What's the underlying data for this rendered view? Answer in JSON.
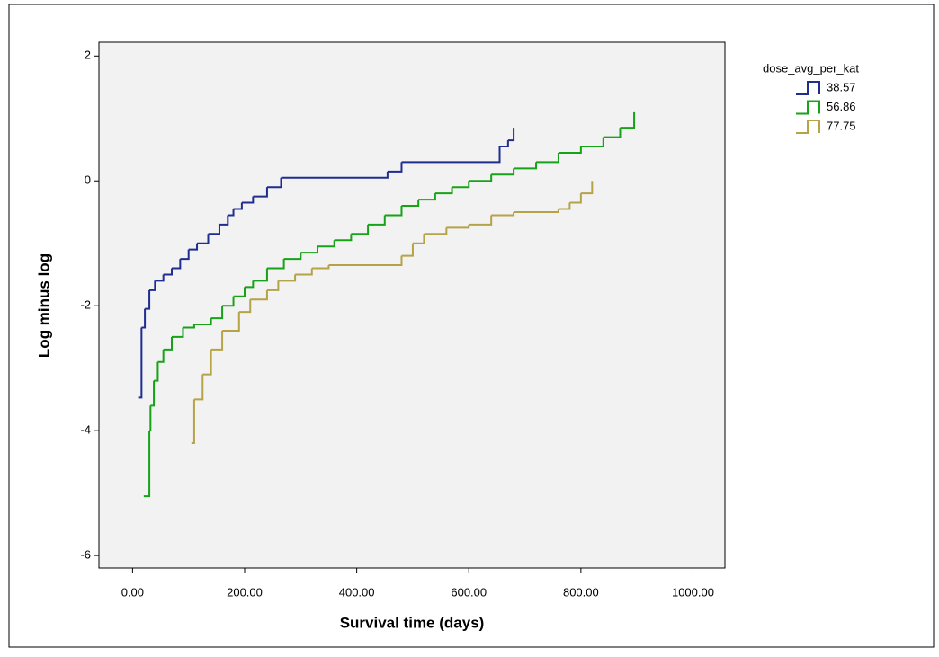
{
  "chart_data": {
    "type": "step",
    "x_label": "Survival time (days)",
    "y_label": "Log minus log",
    "legend_title": "dose_avg_per_kat",
    "legend": "right",
    "xlim": [
      -60,
      1057
    ],
    "ylim": [
      -6.2,
      2.22
    ],
    "xticks": [
      {
        "value": 0,
        "label": "0.00"
      },
      {
        "value": 200,
        "label": "200.00"
      },
      {
        "value": 400,
        "label": "400.00"
      },
      {
        "value": 600,
        "label": "600.00"
      },
      {
        "value": 800,
        "label": "800.00"
      },
      {
        "value": 1000,
        "label": "1000.00"
      }
    ],
    "yticks": [
      2,
      0,
      -2,
      -4,
      -6
    ],
    "series": [
      {
        "name": "38.57",
        "color": "#1f2d91",
        "x": [
          10,
          16,
          22,
          30,
          40,
          55,
          70,
          85,
          100,
          115,
          135,
          155,
          170,
          180,
          195,
          215,
          240,
          265,
          455,
          480,
          655,
          670,
          680
        ],
        "values": [
          -3.47,
          -2.35,
          -2.05,
          -1.75,
          -1.6,
          -1.5,
          -1.4,
          -1.25,
          -1.1,
          -1.0,
          -0.85,
          -0.7,
          -0.55,
          -0.45,
          -0.35,
          -0.25,
          -0.1,
          0.05,
          0.15,
          0.3,
          0.55,
          0.65,
          0.85
        ]
      },
      {
        "name": "56.86",
        "color": "#17a317",
        "x": [
          20,
          30,
          32,
          38,
          45,
          55,
          70,
          90,
          110,
          140,
          160,
          180,
          200,
          215,
          240,
          270,
          300,
          330,
          360,
          390,
          420,
          450,
          480,
          510,
          540,
          570,
          600,
          640,
          680,
          720,
          760,
          800,
          840,
          870,
          895
        ],
        "values": [
          -5.05,
          -4.0,
          -3.6,
          -3.2,
          -2.9,
          -2.7,
          -2.5,
          -2.35,
          -2.3,
          -2.2,
          -2.0,
          -1.85,
          -1.7,
          -1.6,
          -1.4,
          -1.25,
          -1.15,
          -1.05,
          -0.95,
          -0.85,
          -0.7,
          -0.55,
          -0.4,
          -0.3,
          -0.2,
          -0.1,
          0.0,
          0.1,
          0.2,
          0.3,
          0.45,
          0.55,
          0.7,
          0.85,
          1.1
        ]
      },
      {
        "name": "77.75",
        "color": "#b5a348",
        "x": [
          105,
          110,
          125,
          140,
          160,
          190,
          210,
          240,
          260,
          290,
          320,
          350,
          480,
          500,
          520,
          560,
          600,
          640,
          680,
          760,
          780,
          800,
          820
        ],
        "values": [
          -4.2,
          -3.5,
          -3.1,
          -2.7,
          -2.4,
          -2.1,
          -1.9,
          -1.75,
          -1.6,
          -1.5,
          -1.4,
          -1.35,
          -1.2,
          -1.0,
          -0.85,
          -0.75,
          -0.7,
          -0.55,
          -0.5,
          -0.45,
          -0.35,
          -0.2,
          0.0
        ]
      }
    ]
  }
}
